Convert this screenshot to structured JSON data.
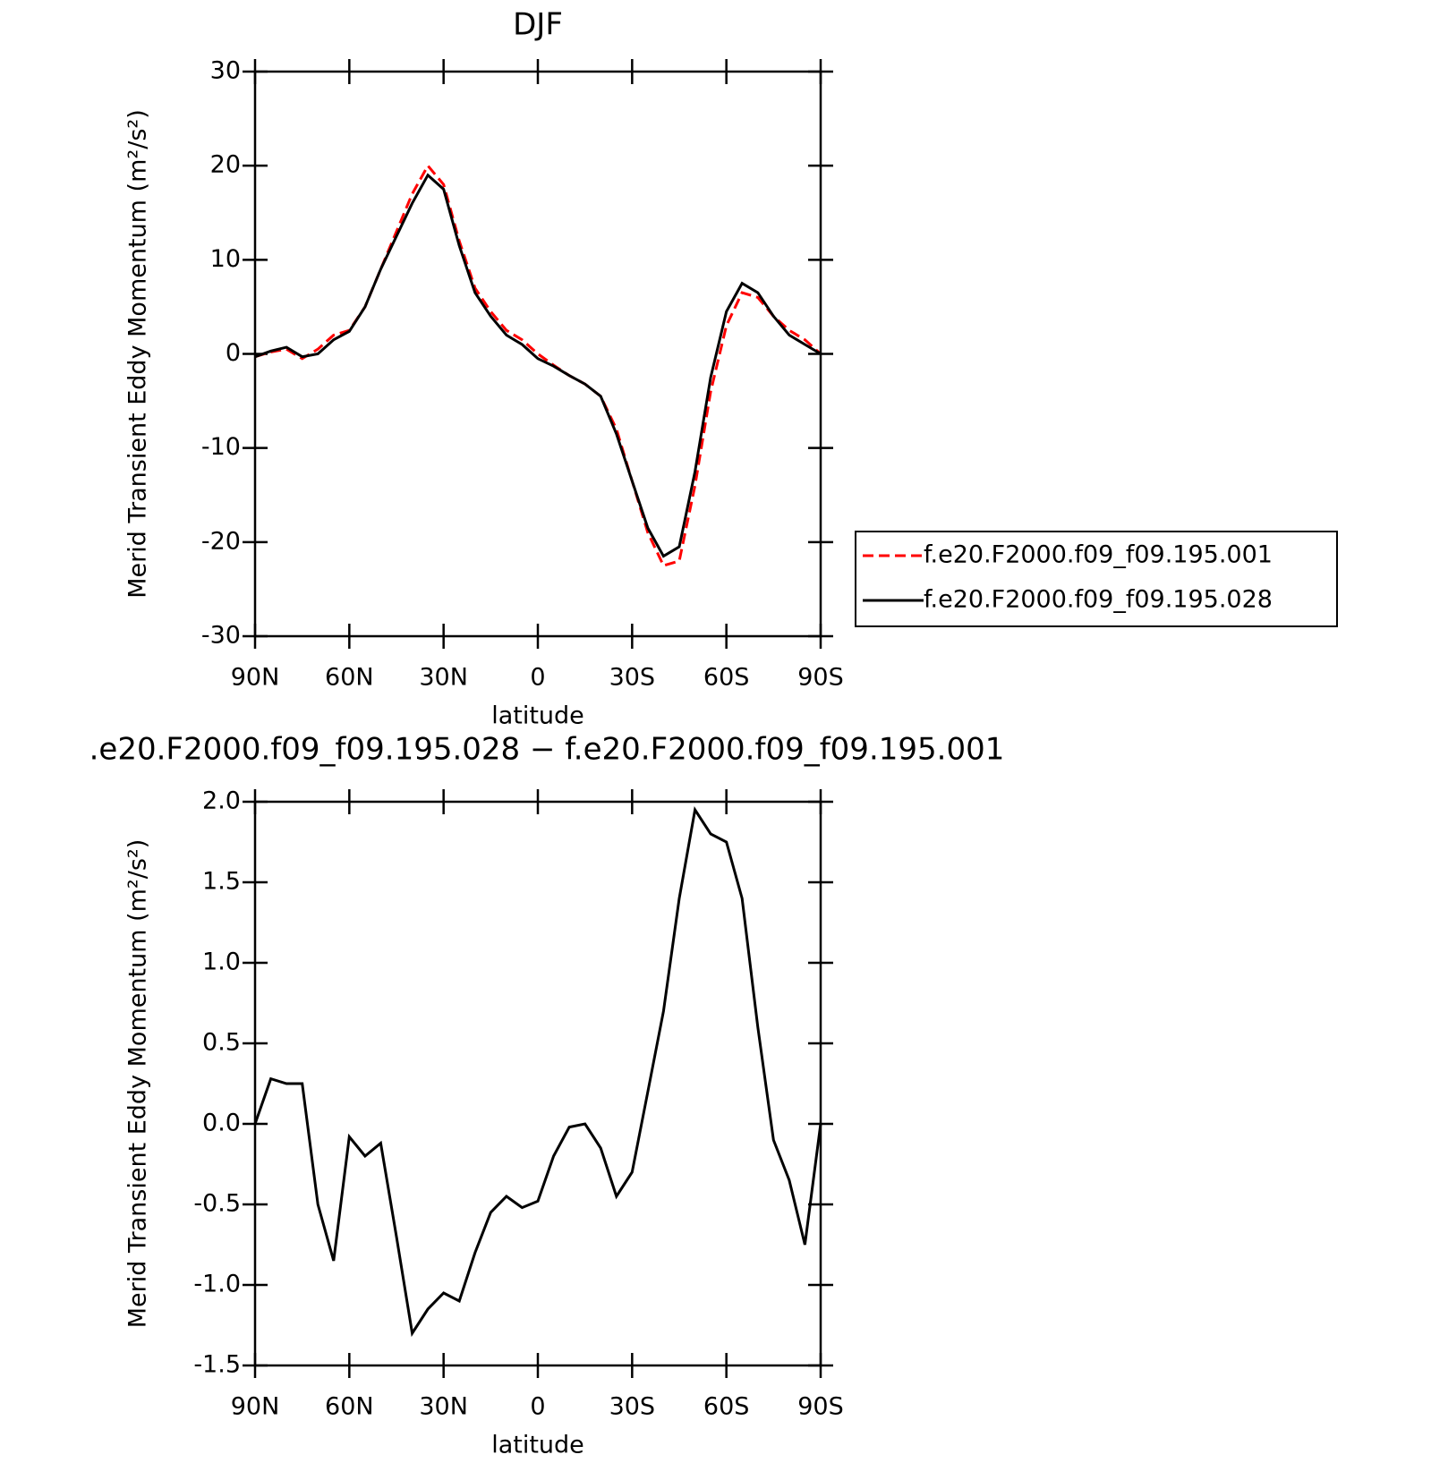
{
  "chart_data": [
    {
      "type": "line",
      "title": "DJF",
      "xlabel": "latitude",
      "ylabel": "Merid Transient Eddy Momentum (m²/s²)",
      "x": [
        90,
        85,
        80,
        75,
        70,
        65,
        60,
        55,
        50,
        45,
        40,
        35,
        30,
        25,
        20,
        15,
        10,
        5,
        0,
        -5,
        -10,
        -15,
        -20,
        -25,
        -30,
        -35,
        -40,
        -45,
        -50,
        -55,
        -60,
        -65,
        -70,
        -75,
        -80,
        -85,
        -90
      ],
      "series": [
        {
          "name": "f.e20.F2000.f09_f09.195.001",
          "color": "#ff0000",
          "linestyle": "dashed",
          "values": [
            -0.3,
            0.2,
            0.5,
            -0.5,
            0.5,
            2.0,
            2.5,
            5,
            9,
            13,
            17,
            20,
            18,
            12,
            7,
            4.5,
            2.5,
            1.5,
            0,
            -1.2,
            -2.3,
            -3.2,
            -4.5,
            -8,
            -13.5,
            -19,
            -22.5,
            -22,
            -14,
            -4,
            3,
            6.5,
            6,
            4,
            2.5,
            1.5,
            0
          ]
        },
        {
          "name": "f.e20.F2000.f09_f09.195.028",
          "color": "#000000",
          "linestyle": "solid",
          "values": [
            -0.3,
            0.3,
            0.7,
            -0.3,
            0,
            1.5,
            2.4,
            5,
            9,
            12.5,
            16,
            19,
            17.5,
            11.5,
            6.5,
            4,
            2,
            1,
            -0.5,
            -1.3,
            -2.3,
            -3.2,
            -4.5,
            -8.5,
            -13.5,
            -18.5,
            -21.5,
            -20.5,
            -12.5,
            -2.5,
            4.5,
            7.5,
            6.5,
            4,
            2,
            1,
            0
          ]
        }
      ],
      "xlim": [
        90,
        -90
      ],
      "xticks": [
        {
          "value": 90,
          "label": "90N"
        },
        {
          "value": 60,
          "label": "60N"
        },
        {
          "value": 30,
          "label": "30N"
        },
        0,
        {
          "value": -30,
          "label": "30S"
        },
        {
          "value": -60,
          "label": "60S"
        },
        {
          "value": -90,
          "label": "90S"
        }
      ],
      "ylim": [
        -30,
        30
      ],
      "yticks": [
        -30,
        -20,
        -10,
        0,
        10,
        20,
        30
      ],
      "legend": "right"
    },
    {
      "type": "line",
      "title": ".e20.F2000.f09_f09.195.028 − f.e20.F2000.f09_f09.195.001",
      "xlabel": "latitude",
      "ylabel": "Merid Transient Eddy Momentum (m²/s²)",
      "x": [
        90,
        85,
        80,
        75,
        70,
        65,
        60,
        55,
        50,
        45,
        40,
        35,
        30,
        25,
        20,
        15,
        10,
        5,
        0,
        -5,
        -10,
        -15,
        -20,
        -25,
        -30,
        -35,
        -40,
        -45,
        -50,
        -55,
        -60,
        -65,
        -70,
        -75,
        -80,
        -85,
        -90
      ],
      "series": [
        {
          "color": "#000000",
          "linestyle": "solid",
          "values": [
            0,
            0.28,
            0.25,
            0.25,
            -0.5,
            -0.85,
            -0.08,
            -0.2,
            -0.12,
            -0.7,
            -1.3,
            -1.15,
            -1.05,
            -1.1,
            -0.8,
            -0.55,
            -0.45,
            -0.52,
            -0.48,
            -0.2,
            -0.02,
            0,
            -0.15,
            -0.45,
            -0.3,
            0.2,
            0.7,
            1.4,
            1.95,
            1.8,
            1.75,
            1.4,
            0.6,
            -0.1,
            -0.35,
            -0.75,
            0
          ]
        }
      ],
      "xlim": [
        90,
        -90
      ],
      "xticks": [
        {
          "value": 90,
          "label": "90N"
        },
        {
          "value": 60,
          "label": "60N"
        },
        {
          "value": 30,
          "label": "30N"
        },
        0,
        {
          "value": -30,
          "label": "30S"
        },
        {
          "value": -60,
          "label": "60S"
        },
        {
          "value": -90,
          "label": "90S"
        }
      ],
      "ylim": [
        -1.5,
        2
      ],
      "yticks": [
        -1.5,
        {
          "value": -1,
          "label": "-1.0"
        },
        -0.5,
        {
          "value": 0,
          "label": "0.0"
        },
        0.5,
        {
          "value": 1,
          "label": "1.0"
        },
        1.5,
        {
          "value": 2,
          "label": "2.0"
        }
      ]
    }
  ]
}
